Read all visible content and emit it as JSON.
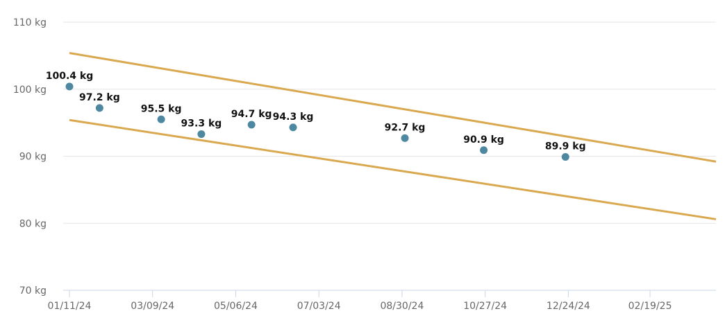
{
  "chart_data": {
    "type": "scatter",
    "grid": "horizontal",
    "y_unit": "kg",
    "ylim": [
      70,
      110
    ],
    "y_ticks": [
      70,
      80,
      90,
      100,
      110
    ],
    "y_tick_labels": [
      "70 kg",
      "80 kg",
      "90 kg",
      "100 kg",
      "110 kg"
    ],
    "xlim": [
      "2024-01-11",
      "2025-04-06"
    ],
    "x_ticks": [
      "2024-01-11",
      "2024-03-09",
      "2024-05-06",
      "2024-07-03",
      "2024-08-30",
      "2024-10-27",
      "2024-12-24",
      "2025-02-19"
    ],
    "x_tick_labels": [
      "01/11/24",
      "03/09/24",
      "05/06/24",
      "07/03/24",
      "08/30/24",
      "10/27/24",
      "12/24/24",
      "02/19/25"
    ],
    "points": [
      {
        "date": "2024-01-11",
        "value": 100.4,
        "label": "100.4 kg"
      },
      {
        "date": "2024-02-01",
        "value": 97.2,
        "label": "97.2 kg"
      },
      {
        "date": "2024-03-15",
        "value": 95.5,
        "label": "95.5 kg"
      },
      {
        "date": "2024-04-12",
        "value": 93.3,
        "label": "93.3 kg"
      },
      {
        "date": "2024-05-17",
        "value": 94.7,
        "label": "94.7 kg"
      },
      {
        "date": "2024-06-15",
        "value": 94.3,
        "label": "94.3 kg"
      },
      {
        "date": "2024-09-01",
        "value": 92.7,
        "label": "92.7 kg"
      },
      {
        "date": "2024-10-26",
        "value": 90.9,
        "label": "90.9 kg"
      },
      {
        "date": "2024-12-22",
        "value": 89.9,
        "label": "89.9 kg"
      }
    ],
    "bands": [
      {
        "name": "upper",
        "start": [
          "2024-01-11",
          105.4
        ],
        "end": [
          "2025-04-06",
          89.2
        ]
      },
      {
        "name": "lower",
        "start": [
          "2024-01-11",
          95.4
        ],
        "end": [
          "2025-04-06",
          80.6
        ]
      }
    ],
    "colors": {
      "point": "#4e87a0",
      "band": "#d9a84f",
      "grid": "#e6e6e6",
      "axis": "#c8d6e6",
      "tick_text": "#666666",
      "label_text": "#111111"
    }
  }
}
